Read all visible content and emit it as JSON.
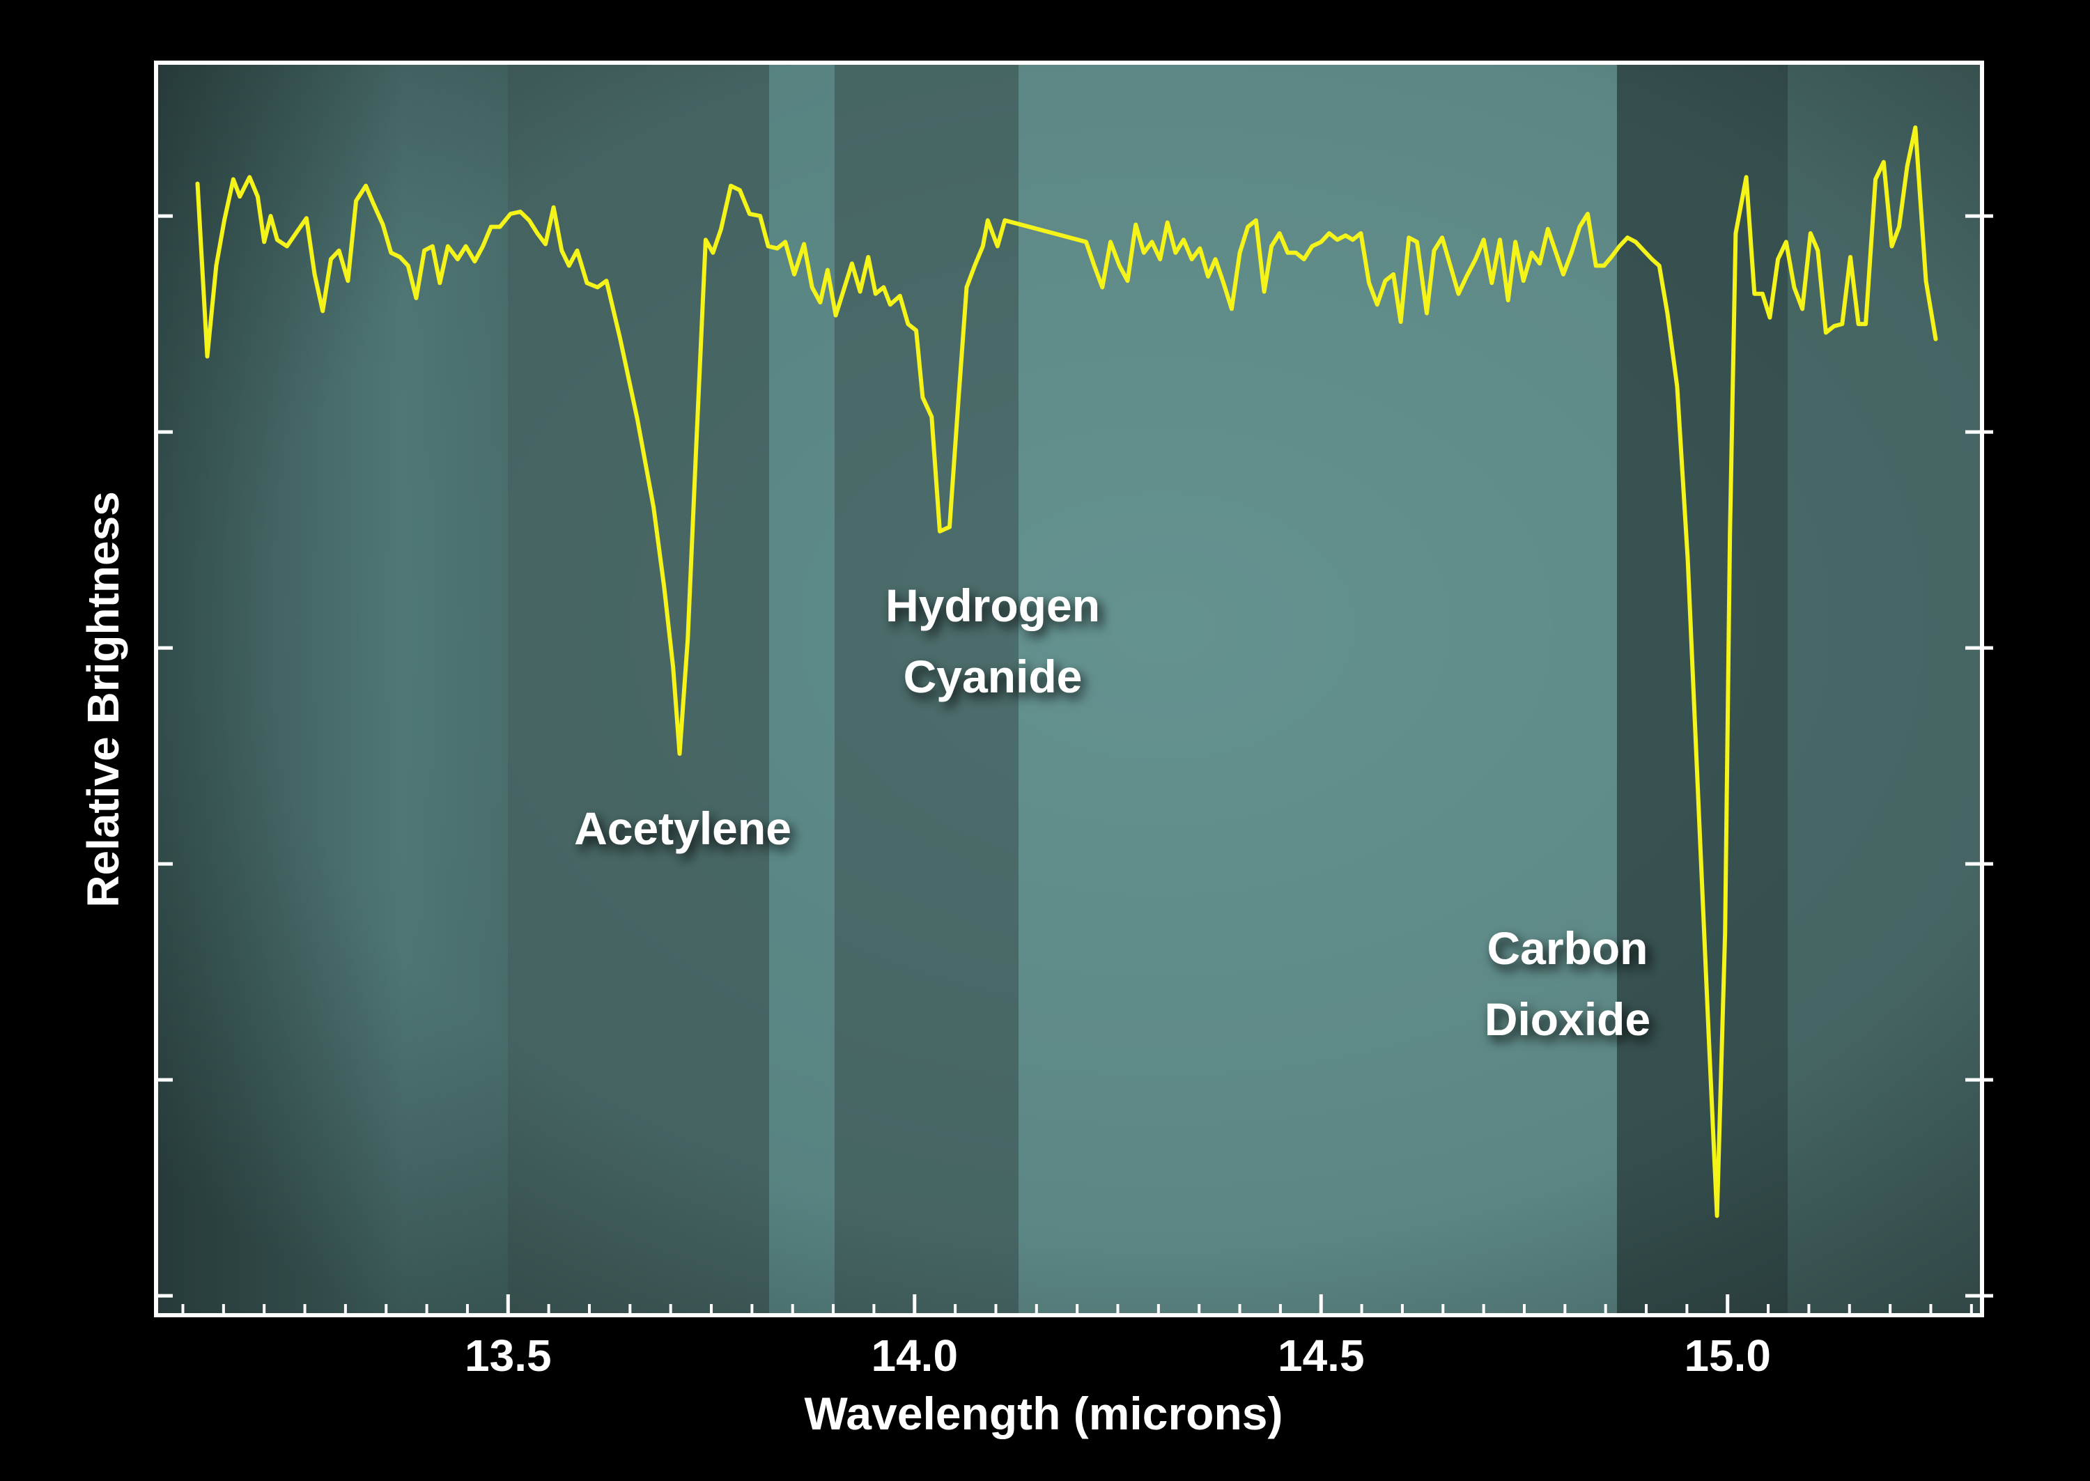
{
  "chart_data": {
    "type": "line",
    "xlabel": "Wavelength (microns)",
    "ylabel": "Relative Brightness",
    "annotations": [
      [
        "Acetylene"
      ],
      [
        "Hydrogen",
        "Cyanide"
      ],
      [
        "Carbon",
        "Dioxide"
      ]
    ],
    "xlim": [
      13.067,
      15.313
    ],
    "ylim": [
      -0.09,
      5.71
    ],
    "xticks": [
      13.5,
      {
        "value": 14,
        "label": "14.0"
      },
      14.5,
      {
        "value": 15,
        "label": "15.0"
      }
    ],
    "xminorticks": [
      13.1,
      13.15,
      13.2,
      13.25,
      13.3,
      13.35,
      13.4,
      13.45,
      13.5,
      13.55,
      13.6,
      13.65,
      13.7,
      13.75,
      13.8,
      13.85,
      13.9,
      13.95,
      14,
      14.05,
      14.1,
      14.15,
      14.2,
      14.25,
      14.3,
      14.35,
      14.4,
      14.45,
      14.5,
      14.55,
      14.6,
      14.65,
      14.7,
      14.75,
      14.8,
      14.85,
      14.9,
      14.95,
      15,
      15.05,
      15.1,
      15.15,
      15.2,
      15.25,
      15.3
    ],
    "yticks": [
      0,
      1,
      2,
      3,
      4,
      5
    ],
    "x": [
      13.118,
      13.13,
      13.141,
      13.151,
      13.162,
      13.17,
      13.182,
      13.192,
      13.2,
      13.208,
      13.216,
      13.228,
      13.239,
      13.252,
      13.262,
      13.272,
      13.282,
      13.292,
      13.303,
      13.313,
      13.325,
      13.334,
      13.346,
      13.356,
      13.367,
      13.377,
      13.387,
      13.397,
      13.407,
      13.416,
      13.426,
      13.438,
      13.448,
      13.459,
      13.469,
      13.479,
      13.49,
      13.503,
      13.515,
      13.526,
      13.536,
      13.546,
      13.556,
      13.566,
      13.575,
      13.585,
      13.597,
      13.61,
      13.621,
      13.638,
      13.659,
      13.679,
      13.692,
      13.703,
      13.711,
      13.721,
      13.731,
      13.743,
      13.752,
      13.762,
      13.774,
      13.785,
      13.797,
      13.81,
      13.82,
      13.831,
      13.841,
      13.852,
      13.864,
      13.874,
      13.884,
      13.893,
      13.903,
      13.913,
      13.923,
      13.933,
      13.943,
      13.952,
      13.962,
      13.97,
      13.982,
      13.992,
      14.002,
      14.01,
      14.021,
      14.031,
      14.043,
      14.054,
      14.064,
      14.074,
      14.084,
      14.09,
      14.102,
      14.111,
      14.211,
      14.221,
      14.231,
      14.241,
      14.252,
      14.262,
      14.272,
      14.282,
      14.292,
      14.302,
      14.311,
      14.321,
      14.331,
      14.341,
      14.351,
      14.361,
      14.37,
      14.38,
      14.39,
      14.4,
      14.41,
      14.42,
      14.43,
      14.439,
      14.449,
      14.459,
      14.469,
      14.479,
      14.489,
      14.5,
      14.51,
      14.52,
      14.53,
      14.539,
      14.549,
      14.559,
      14.569,
      14.579,
      14.589,
      14.598,
      14.608,
      14.618,
      14.63,
      14.639,
      14.649,
      14.659,
      14.669,
      14.679,
      14.69,
      14.7,
      14.71,
      14.72,
      14.73,
      14.739,
      14.749,
      14.759,
      14.769,
      14.779,
      14.789,
      14.798,
      14.808,
      14.818,
      14.828,
      14.838,
      14.848,
      14.857,
      14.867,
      14.877,
      14.887,
      14.897,
      14.907,
      14.916,
      14.926,
      14.938,
      14.951,
      14.964,
      14.977,
      14.987,
      14.997,
      15.003,
      15.01,
      15.023,
      15.033,
      15.043,
      15.052,
      15.062,
      15.072,
      15.082,
      15.092,
      15.102,
      15.111,
      15.121,
      15.131,
      15.141,
      15.151,
      15.161,
      15.17,
      15.182,
      15.192,
      15.202,
      15.211,
      15.221,
      15.231,
      15.244,
      15.256
    ],
    "series": [
      {
        "color": "#f4f31a",
        "values": [
          5.15,
          4.35,
          4.77,
          4.98,
          5.17,
          5.09,
          5.18,
          5.09,
          4.88,
          5.0,
          4.89,
          4.86,
          4.92,
          4.99,
          4.73,
          4.56,
          4.8,
          4.84,
          4.7,
          5.07,
          5.14,
          5.06,
          4.96,
          4.83,
          4.81,
          4.77,
          4.62,
          4.84,
          4.86,
          4.69,
          4.86,
          4.8,
          4.86,
          4.79,
          4.86,
          4.95,
          4.95,
          5.01,
          5.02,
          4.98,
          4.92,
          4.87,
          5.04,
          4.84,
          4.77,
          4.84,
          4.69,
          4.67,
          4.7,
          4.43,
          4.06,
          3.65,
          3.28,
          2.91,
          2.51,
          3.04,
          3.9,
          4.89,
          4.83,
          4.94,
          5.14,
          5.12,
          5.01,
          5.0,
          4.86,
          4.85,
          4.88,
          4.73,
          4.87,
          4.67,
          4.6,
          4.75,
          4.54,
          4.66,
          4.78,
          4.65,
          4.81,
          4.64,
          4.67,
          4.59,
          4.63,
          4.5,
          4.47,
          4.16,
          4.07,
          3.54,
          3.56,
          4.15,
          4.67,
          4.77,
          4.86,
          4.98,
          4.86,
          4.98,
          4.88,
          4.77,
          4.67,
          4.88,
          4.77,
          4.7,
          4.96,
          4.83,
          4.88,
          4.8,
          4.97,
          4.83,
          4.89,
          4.8,
          4.85,
          4.72,
          4.8,
          4.69,
          4.57,
          4.83,
          4.95,
          4.98,
          4.65,
          4.86,
          4.92,
          4.83,
          4.83,
          4.8,
          4.86,
          4.88,
          4.92,
          4.89,
          4.91,
          4.89,
          4.92,
          4.69,
          4.59,
          4.7,
          4.73,
          4.51,
          4.9,
          4.88,
          4.55,
          4.84,
          4.9,
          4.77,
          4.64,
          4.72,
          4.8,
          4.89,
          4.69,
          4.89,
          4.61,
          4.88,
          4.7,
          4.83,
          4.78,
          4.94,
          4.83,
          4.73,
          4.83,
          4.95,
          5.01,
          4.77,
          4.77,
          4.81,
          4.86,
          4.9,
          4.88,
          4.84,
          4.8,
          4.77,
          4.55,
          4.21,
          3.41,
          2.3,
          1.19,
          0.37,
          1.68,
          3.53,
          4.92,
          5.18,
          4.64,
          4.64,
          4.53,
          4.8,
          4.88,
          4.67,
          4.57,
          4.92,
          4.84,
          4.46,
          4.49,
          4.5,
          4.81,
          4.5,
          4.5,
          5.17,
          5.25,
          4.86,
          4.95,
          5.23,
          5.41,
          4.7,
          4.43
        ]
      }
    ]
  }
}
